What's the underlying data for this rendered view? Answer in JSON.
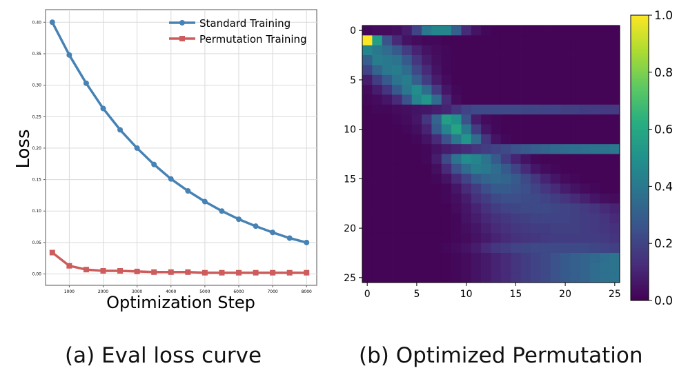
{
  "captions": {
    "a": "(a) Eval loss curve",
    "b": "(b) Optimized Permutation"
  },
  "chart_data": [
    {
      "type": "line",
      "title": "",
      "xlabel": "Optimization Step",
      "ylabel": "Loss",
      "xlim": [
        300,
        8300
      ],
      "ylim": [
        -0.018,
        0.42
      ],
      "x": [
        500,
        1000,
        1500,
        2000,
        2500,
        3000,
        3500,
        4000,
        4500,
        5000,
        5500,
        6000,
        6500,
        7000,
        7500,
        8000
      ],
      "xticks": [
        1000,
        2000,
        3000,
        4000,
        5000,
        6000,
        7000,
        8000
      ],
      "xtick_labels": [
        "1000",
        "2000",
        "3000",
        "4000",
        "5000",
        "6000",
        "7000",
        "8000"
      ],
      "yticks": [
        0.0,
        0.05,
        0.1,
        0.15,
        0.2,
        0.25,
        0.3,
        0.35,
        0.4
      ],
      "ytick_labels": [
        "0.00",
        "0.05",
        "0.10",
        "0.15",
        "0.20",
        "0.25",
        "0.30",
        "0.35",
        "0.40"
      ],
      "grid": true,
      "legend_position": "top-right",
      "series": [
        {
          "name": "Standard Training",
          "color": "#4682b4",
          "marker": "circle",
          "values": [
            0.4,
            0.348,
            0.303,
            0.263,
            0.229,
            0.2,
            0.174,
            0.151,
            0.132,
            0.115,
            0.1,
            0.087,
            0.076,
            0.066,
            0.057,
            0.05
          ]
        },
        {
          "name": "Permutation Training",
          "color": "#cd5c5c",
          "marker": "square",
          "values": [
            0.034,
            0.013,
            0.007,
            0.005,
            0.005,
            0.004,
            0.003,
            0.003,
            0.003,
            0.002,
            0.002,
            0.002,
            0.002,
            0.002,
            0.002,
            0.002
          ]
        }
      ]
    },
    {
      "type": "heatmap",
      "title": "",
      "colormap": "viridis",
      "rows": 26,
      "cols": 26,
      "xticks": [
        0,
        5,
        10,
        15,
        20,
        25
      ],
      "xtick_labels": [
        "0",
        "5",
        "10",
        "15",
        "20",
        "25"
      ],
      "yticks": [
        0,
        5,
        10,
        15,
        20,
        25
      ],
      "ytick_labels": [
        "0",
        "5",
        "10",
        "15",
        "20",
        "25"
      ],
      "colorbar_ticks": [
        0.0,
        0.2,
        0.4,
        0.6,
        0.8,
        1.0
      ],
      "colorbar_labels": [
        "0.0",
        "0.2",
        "0.4",
        "0.6",
        "0.8",
        "1.0"
      ],
      "vmin": 0.0,
      "vmax": 1.0,
      "values": [
        [
          0.02,
          0.03,
          0.03,
          0.04,
          0.08,
          0.2,
          0.4,
          0.45,
          0.45,
          0.3,
          0.12,
          0.05,
          0.02,
          0.01,
          0.01,
          0.01,
          0.01,
          0.01,
          0.01,
          0.01,
          0.01,
          0.01,
          0.01,
          0.01,
          0.01,
          0.01
        ],
        [
          1.0,
          0.55,
          0.25,
          0.12,
          0.05,
          0.03,
          0.02,
          0.02,
          0.01,
          0.01,
          0.01,
          0.01,
          0.01,
          0.01,
          0.01,
          0.01,
          0.01,
          0.01,
          0.01,
          0.01,
          0.01,
          0.01,
          0.01,
          0.01,
          0.01,
          0.01
        ],
        [
          0.45,
          0.4,
          0.35,
          0.28,
          0.18,
          0.1,
          0.05,
          0.03,
          0.02,
          0.01,
          0.01,
          0.01,
          0.01,
          0.01,
          0.01,
          0.01,
          0.01,
          0.01,
          0.01,
          0.01,
          0.01,
          0.01,
          0.01,
          0.01,
          0.01,
          0.01
        ],
        [
          0.3,
          0.42,
          0.4,
          0.38,
          0.28,
          0.16,
          0.08,
          0.04,
          0.02,
          0.01,
          0.01,
          0.01,
          0.01,
          0.01,
          0.01,
          0.01,
          0.01,
          0.01,
          0.01,
          0.01,
          0.01,
          0.01,
          0.01,
          0.01,
          0.01,
          0.01
        ],
        [
          0.2,
          0.32,
          0.4,
          0.42,
          0.35,
          0.22,
          0.12,
          0.05,
          0.02,
          0.01,
          0.01,
          0.01,
          0.01,
          0.01,
          0.01,
          0.01,
          0.01,
          0.01,
          0.01,
          0.01,
          0.01,
          0.01,
          0.01,
          0.01,
          0.01,
          0.01
        ],
        [
          0.08,
          0.18,
          0.28,
          0.38,
          0.42,
          0.3,
          0.18,
          0.08,
          0.03,
          0.01,
          0.01,
          0.01,
          0.01,
          0.01,
          0.01,
          0.01,
          0.01,
          0.01,
          0.01,
          0.01,
          0.01,
          0.01,
          0.01,
          0.01,
          0.01,
          0.01
        ],
        [
          0.03,
          0.08,
          0.15,
          0.28,
          0.4,
          0.48,
          0.35,
          0.18,
          0.06,
          0.02,
          0.01,
          0.01,
          0.01,
          0.01,
          0.01,
          0.01,
          0.01,
          0.01,
          0.01,
          0.01,
          0.01,
          0.01,
          0.01,
          0.01,
          0.01,
          0.01
        ],
        [
          0.02,
          0.03,
          0.06,
          0.12,
          0.25,
          0.45,
          0.52,
          0.35,
          0.12,
          0.03,
          0.01,
          0.01,
          0.01,
          0.01,
          0.01,
          0.01,
          0.01,
          0.01,
          0.01,
          0.01,
          0.01,
          0.01,
          0.01,
          0.01,
          0.01,
          0.01
        ],
        [
          0.01,
          0.02,
          0.02,
          0.03,
          0.04,
          0.05,
          0.06,
          0.08,
          0.1,
          0.15,
          0.2,
          0.22,
          0.22,
          0.22,
          0.22,
          0.22,
          0.21,
          0.21,
          0.2,
          0.2,
          0.19,
          0.19,
          0.18,
          0.18,
          0.17,
          0.17
        ],
        [
          0.01,
          0.01,
          0.01,
          0.02,
          0.03,
          0.06,
          0.15,
          0.32,
          0.55,
          0.5,
          0.25,
          0.08,
          0.03,
          0.02,
          0.01,
          0.01,
          0.01,
          0.01,
          0.01,
          0.01,
          0.01,
          0.01,
          0.01,
          0.01,
          0.01,
          0.01
        ],
        [
          0.01,
          0.01,
          0.01,
          0.01,
          0.02,
          0.04,
          0.1,
          0.28,
          0.45,
          0.58,
          0.4,
          0.18,
          0.06,
          0.02,
          0.01,
          0.01,
          0.01,
          0.01,
          0.01,
          0.01,
          0.01,
          0.01,
          0.01,
          0.01,
          0.01,
          0.01
        ],
        [
          0.01,
          0.01,
          0.01,
          0.01,
          0.01,
          0.02,
          0.05,
          0.12,
          0.25,
          0.4,
          0.52,
          0.35,
          0.15,
          0.05,
          0.02,
          0.01,
          0.01,
          0.01,
          0.01,
          0.01,
          0.01,
          0.01,
          0.01,
          0.01,
          0.01,
          0.01
        ],
        [
          0.01,
          0.01,
          0.01,
          0.01,
          0.01,
          0.01,
          0.02,
          0.05,
          0.08,
          0.1,
          0.12,
          0.15,
          0.18,
          0.2,
          0.22,
          0.25,
          0.28,
          0.3,
          0.32,
          0.34,
          0.35,
          0.36,
          0.37,
          0.38,
          0.38,
          0.4
        ],
        [
          0.01,
          0.01,
          0.01,
          0.01,
          0.01,
          0.01,
          0.02,
          0.08,
          0.22,
          0.38,
          0.48,
          0.45,
          0.38,
          0.28,
          0.18,
          0.1,
          0.05,
          0.02,
          0.01,
          0.01,
          0.01,
          0.01,
          0.01,
          0.01,
          0.01,
          0.01
        ],
        [
          0.01,
          0.01,
          0.01,
          0.01,
          0.01,
          0.01,
          0.01,
          0.04,
          0.12,
          0.25,
          0.35,
          0.42,
          0.4,
          0.35,
          0.28,
          0.2,
          0.12,
          0.06,
          0.03,
          0.02,
          0.01,
          0.01,
          0.01,
          0.01,
          0.01,
          0.01
        ],
        [
          0.01,
          0.01,
          0.01,
          0.01,
          0.01,
          0.01,
          0.01,
          0.02,
          0.05,
          0.12,
          0.2,
          0.28,
          0.32,
          0.34,
          0.32,
          0.28,
          0.22,
          0.16,
          0.1,
          0.06,
          0.03,
          0.02,
          0.01,
          0.01,
          0.01,
          0.01
        ],
        [
          0.01,
          0.01,
          0.01,
          0.01,
          0.01,
          0.01,
          0.01,
          0.01,
          0.02,
          0.06,
          0.12,
          0.18,
          0.24,
          0.28,
          0.28,
          0.26,
          0.24,
          0.2,
          0.16,
          0.12,
          0.08,
          0.05,
          0.03,
          0.02,
          0.01,
          0.01
        ],
        [
          0.01,
          0.01,
          0.01,
          0.01,
          0.01,
          0.01,
          0.01,
          0.01,
          0.02,
          0.04,
          0.08,
          0.14,
          0.18,
          0.22,
          0.24,
          0.24,
          0.23,
          0.22,
          0.2,
          0.18,
          0.15,
          0.12,
          0.09,
          0.06,
          0.04,
          0.03
        ],
        [
          0.01,
          0.01,
          0.01,
          0.01,
          0.01,
          0.01,
          0.01,
          0.01,
          0.01,
          0.03,
          0.06,
          0.1,
          0.14,
          0.18,
          0.2,
          0.21,
          0.22,
          0.22,
          0.22,
          0.21,
          0.2,
          0.19,
          0.17,
          0.15,
          0.12,
          0.1
        ],
        [
          0.01,
          0.01,
          0.01,
          0.01,
          0.01,
          0.01,
          0.01,
          0.01,
          0.01,
          0.02,
          0.05,
          0.08,
          0.11,
          0.14,
          0.16,
          0.18,
          0.19,
          0.2,
          0.2,
          0.2,
          0.2,
          0.19,
          0.18,
          0.17,
          0.15,
          0.12
        ],
        [
          0.01,
          0.01,
          0.01,
          0.01,
          0.01,
          0.01,
          0.01,
          0.01,
          0.01,
          0.02,
          0.04,
          0.06,
          0.09,
          0.12,
          0.14,
          0.16,
          0.17,
          0.18,
          0.18,
          0.19,
          0.19,
          0.19,
          0.18,
          0.17,
          0.16,
          0.14
        ],
        [
          0.01,
          0.01,
          0.01,
          0.01,
          0.01,
          0.01,
          0.01,
          0.01,
          0.01,
          0.02,
          0.03,
          0.05,
          0.07,
          0.1,
          0.12,
          0.14,
          0.15,
          0.16,
          0.17,
          0.18,
          0.18,
          0.18,
          0.18,
          0.18,
          0.17,
          0.15
        ],
        [
          0.01,
          0.01,
          0.01,
          0.01,
          0.01,
          0.01,
          0.01,
          0.01,
          0.02,
          0.03,
          0.05,
          0.08,
          0.12,
          0.16,
          0.18,
          0.2,
          0.21,
          0.22,
          0.22,
          0.22,
          0.22,
          0.22,
          0.22,
          0.21,
          0.2,
          0.19
        ],
        [
          0.01,
          0.01,
          0.01,
          0.01,
          0.01,
          0.01,
          0.01,
          0.01,
          0.01,
          0.02,
          0.03,
          0.05,
          0.07,
          0.1,
          0.12,
          0.15,
          0.18,
          0.2,
          0.22,
          0.25,
          0.28,
          0.3,
          0.32,
          0.34,
          0.36,
          0.38
        ],
        [
          0.01,
          0.01,
          0.01,
          0.01,
          0.01,
          0.01,
          0.01,
          0.01,
          0.01,
          0.02,
          0.03,
          0.05,
          0.07,
          0.1,
          0.12,
          0.15,
          0.18,
          0.2,
          0.22,
          0.25,
          0.28,
          0.3,
          0.32,
          0.35,
          0.37,
          0.38
        ],
        [
          0.01,
          0.01,
          0.01,
          0.01,
          0.01,
          0.01,
          0.01,
          0.01,
          0.01,
          0.02,
          0.03,
          0.05,
          0.07,
          0.1,
          0.12,
          0.15,
          0.18,
          0.2,
          0.22,
          0.25,
          0.28,
          0.3,
          0.32,
          0.35,
          0.37,
          0.38
        ]
      ]
    }
  ]
}
